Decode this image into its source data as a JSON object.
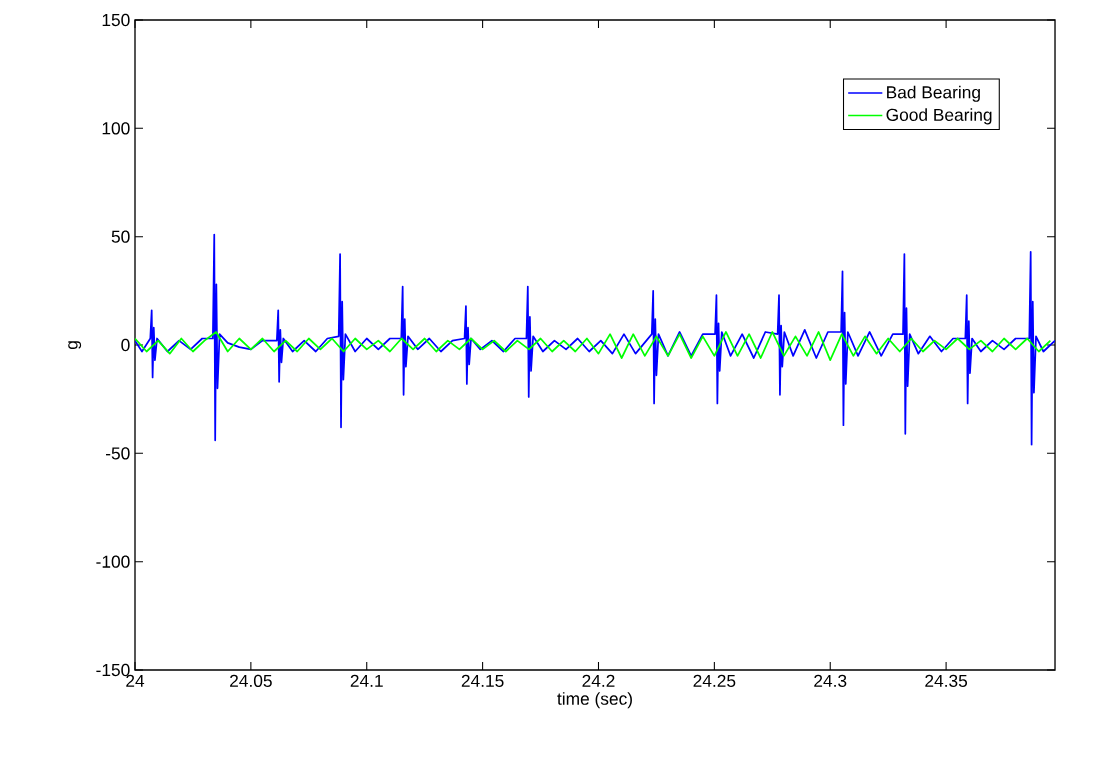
{
  "chart_data": {
    "type": "line",
    "xlabel": "time (sec)",
    "ylabel": "g",
    "xlim": [
      24,
      24.397
    ],
    "xticks": [
      24,
      24.05,
      24.1,
      24.15,
      24.2,
      24.25,
      24.3,
      24.35
    ],
    "ylim": [
      -150,
      150
    ],
    "yticks": [
      -150,
      -100,
      -50,
      0,
      50,
      100,
      150
    ],
    "legend": "top right",
    "series": [
      {
        "name": "Bad Bearing",
        "color": "#0000ff",
        "x": [
          24.0,
          24.003,
          24.0066,
          24.0072,
          24.0076,
          24.0081,
          24.0086,
          24.0095,
          24.014,
          24.019,
          24.024,
          24.029,
          24.0336,
          24.0342,
          24.0346,
          24.0351,
          24.0356,
          24.0365,
          24.04,
          24.045,
          24.05,
          24.055,
          24.0612,
          24.0618,
          24.0622,
          24.0627,
          24.0632,
          24.064,
          24.068,
          24.073,
          24.078,
          24.083,
          24.0879,
          24.0885,
          24.0889,
          24.0894,
          24.0899,
          24.0908,
          24.095,
          24.1,
          24.105,
          24.11,
          24.1149,
          24.1155,
          24.1159,
          24.1164,
          24.1169,
          24.1178,
          24.122,
          24.127,
          24.132,
          24.137,
          24.1422,
          24.1428,
          24.1432,
          24.1437,
          24.1442,
          24.145,
          24.149,
          24.154,
          24.159,
          24.164,
          24.1689,
          24.1695,
          24.1699,
          24.1704,
          24.1709,
          24.1718,
          24.176,
          24.181,
          24.186,
          24.191,
          24.196,
          24.201,
          24.206,
          24.211,
          24.216,
          24.223,
          24.2236,
          24.224,
          24.2245,
          24.225,
          24.2259,
          24.23,
          24.235,
          24.24,
          24.245,
          24.2503,
          24.2509,
          24.2513,
          24.2518,
          24.2523,
          24.2532,
          24.257,
          24.262,
          24.267,
          24.272,
          24.2773,
          24.2779,
          24.2783,
          24.2788,
          24.2793,
          24.2802,
          24.284,
          24.289,
          24.294,
          24.299,
          24.3047,
          24.3053,
          24.3057,
          24.3062,
          24.3067,
          24.3076,
          24.312,
          24.317,
          24.322,
          24.327,
          24.3314,
          24.332,
          24.3324,
          24.3329,
          24.3334,
          24.3343,
          24.338,
          24.343,
          24.348,
          24.353,
          24.3583,
          24.3589,
          24.3593,
          24.3598,
          24.3603,
          24.3612,
          24.365,
          24.37,
          24.375,
          24.38,
          24.3859,
          24.3865,
          24.3869,
          24.3874,
          24.3879,
          24.3888,
          24.392,
          24.397
        ],
        "values": [
          2,
          -3,
          3,
          16,
          -15,
          8,
          -7,
          3,
          -3,
          2,
          -2,
          3,
          3,
          51,
          -44,
          28,
          -20,
          5,
          1,
          -1,
          -2,
          2,
          2,
          16,
          -17,
          7,
          -8,
          3,
          -3,
          2,
          -3,
          3,
          4,
          42,
          -38,
          20,
          -16,
          5,
          -3,
          3,
          -2,
          3,
          3,
          27,
          -23,
          12,
          -10,
          4,
          -2,
          3,
          -3,
          2,
          3,
          18,
          -18,
          8,
          -9,
          3,
          -2,
          2,
          -3,
          3,
          3,
          27,
          -24,
          13,
          -12,
          4,
          -3,
          2,
          -2,
          3,
          -3,
          2,
          -4,
          5,
          -4,
          5,
          25,
          -27,
          12,
          -14,
          5,
          -5,
          6,
          -5,
          5,
          5,
          23,
          -27,
          10,
          -12,
          6,
          -5,
          5,
          -6,
          6,
          5,
          23,
          -23,
          9,
          -10,
          6,
          -5,
          7,
          -6,
          6,
          6,
          34,
          -37,
          15,
          -18,
          6,
          -5,
          6,
          -5,
          5,
          5,
          42,
          -41,
          17,
          -19,
          5,
          -4,
          4,
          -3,
          3,
          3,
          23,
          -27,
          11,
          -13,
          3,
          -3,
          2,
          -2,
          3,
          3,
          43,
          -46,
          20,
          -22,
          4,
          -3,
          2
        ]
      },
      {
        "name": "Good Bearing",
        "color": "#00ff00",
        "x": [
          24.0,
          24.005,
          24.01,
          24.015,
          24.02,
          24.025,
          24.03,
          24.035,
          24.04,
          24.045,
          24.05,
          24.055,
          24.06,
          24.065,
          24.07,
          24.075,
          24.08,
          24.085,
          24.09,
          24.095,
          24.1,
          24.105,
          24.11,
          24.115,
          24.12,
          24.125,
          24.13,
          24.135,
          24.14,
          24.145,
          24.15,
          24.155,
          24.16,
          24.165,
          24.17,
          24.175,
          24.18,
          24.185,
          24.19,
          24.195,
          24.2,
          24.205,
          24.21,
          24.215,
          24.22,
          24.225,
          24.23,
          24.235,
          24.24,
          24.245,
          24.25,
          24.255,
          24.26,
          24.265,
          24.27,
          24.275,
          24.28,
          24.285,
          24.29,
          24.295,
          24.3,
          24.305,
          24.31,
          24.315,
          24.32,
          24.325,
          24.33,
          24.335,
          24.34,
          24.345,
          24.35,
          24.355,
          24.36,
          24.365,
          24.37,
          24.375,
          24.38,
          24.385,
          24.39,
          24.395
        ],
        "values": [
          3,
          -3,
          2,
          -4,
          3,
          -3,
          2,
          6,
          -3,
          3,
          -2,
          3,
          -3,
          2,
          -3,
          3,
          -2,
          3,
          -3,
          3,
          -2,
          2,
          -3,
          3,
          -2,
          3,
          -3,
          2,
          -2,
          3,
          -2,
          2,
          -3,
          2,
          -2,
          3,
          -3,
          2,
          -3,
          3,
          -4,
          5,
          -6,
          5,
          -5,
          4,
          -5,
          5,
          -6,
          4,
          -5,
          6,
          -5,
          5,
          -6,
          6,
          -5,
          4,
          -5,
          6,
          -7,
          5,
          -5,
          4,
          -4,
          3,
          -3,
          3,
          -3,
          2,
          -2,
          3,
          -2,
          2,
          -3,
          3,
          -2,
          3,
          -3,
          2
        ]
      }
    ]
  }
}
